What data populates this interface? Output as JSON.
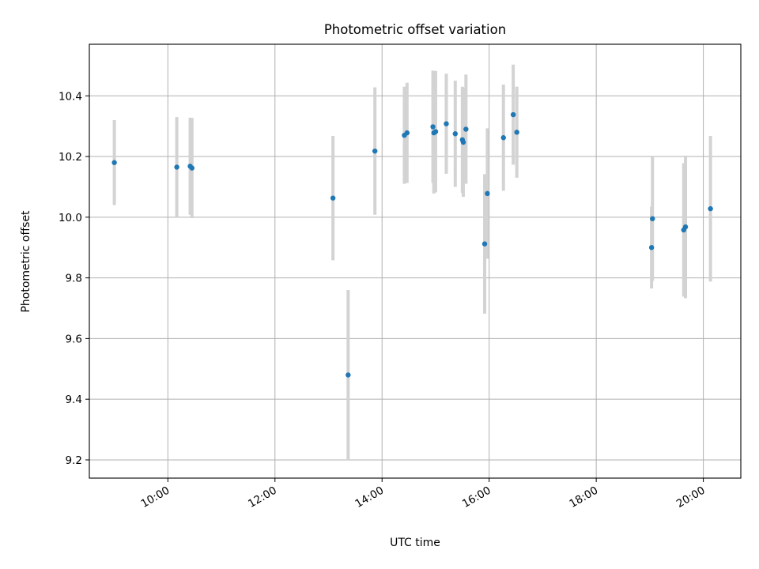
{
  "chart_data": {
    "type": "scatter",
    "title": "Photometric offset variation",
    "xlabel": "UTC time",
    "ylabel": "Photometric offset",
    "x_axis_type": "time",
    "xlim": [
      "08:32",
      "20:42"
    ],
    "ylim": [
      9.14,
      10.57
    ],
    "x_ticks": [
      "10:00",
      "12:00",
      "14:00",
      "16:00",
      "18:00",
      "20:00"
    ],
    "y_ticks": [
      9.2,
      9.4,
      9.6,
      9.8,
      10.0,
      10.2,
      10.4
    ],
    "grid": true,
    "marker_color": "#1f77b4",
    "errorbar_color": "#d3d3d3",
    "points": [
      {
        "x": "09:00",
        "y": 10.18,
        "err": 0.14
      },
      {
        "x": "10:10",
        "y": 10.165,
        "err": 0.165
      },
      {
        "x": "10:25",
        "y": 10.168,
        "err": 0.16
      },
      {
        "x": "10:27",
        "y": 10.162,
        "err": 0.165
      },
      {
        "x": "13:05",
        "y": 10.063,
        "err": 0.205
      },
      {
        "x": "13:22",
        "y": 9.48,
        "err": 0.28
      },
      {
        "x": "13:52",
        "y": 10.218,
        "err": 0.21
      },
      {
        "x": "14:25",
        "y": 10.27,
        "err": 0.16
      },
      {
        "x": "14:28",
        "y": 10.278,
        "err": 0.165
      },
      {
        "x": "14:57",
        "y": 10.298,
        "err": 0.185
      },
      {
        "x": "14:58",
        "y": 10.278,
        "err": 0.2
      },
      {
        "x": "15:00",
        "y": 10.282,
        "err": 0.2
      },
      {
        "x": "15:12",
        "y": 10.308,
        "err": 0.165
      },
      {
        "x": "15:22",
        "y": 10.275,
        "err": 0.175
      },
      {
        "x": "15:30",
        "y": 10.255,
        "err": 0.175
      },
      {
        "x": "15:31",
        "y": 10.247,
        "err": 0.18
      },
      {
        "x": "15:34",
        "y": 10.29,
        "err": 0.18
      },
      {
        "x": "15:55",
        "y": 9.912,
        "err": 0.23
      },
      {
        "x": "15:58",
        "y": 10.078,
        "err": 0.215
      },
      {
        "x": "16:16",
        "y": 10.262,
        "err": 0.175
      },
      {
        "x": "16:27",
        "y": 10.338,
        "err": 0.165
      },
      {
        "x": "16:31",
        "y": 10.28,
        "err": 0.15
      },
      {
        "x": "19:02",
        "y": 9.9,
        "err": 0.135
      },
      {
        "x": "19:03",
        "y": 9.995,
        "err": 0.205
      },
      {
        "x": "19:38",
        "y": 9.958,
        "err": 0.22
      },
      {
        "x": "19:40",
        "y": 9.968,
        "err": 0.235
      },
      {
        "x": "20:08",
        "y": 10.028,
        "err": 0.24
      }
    ]
  }
}
